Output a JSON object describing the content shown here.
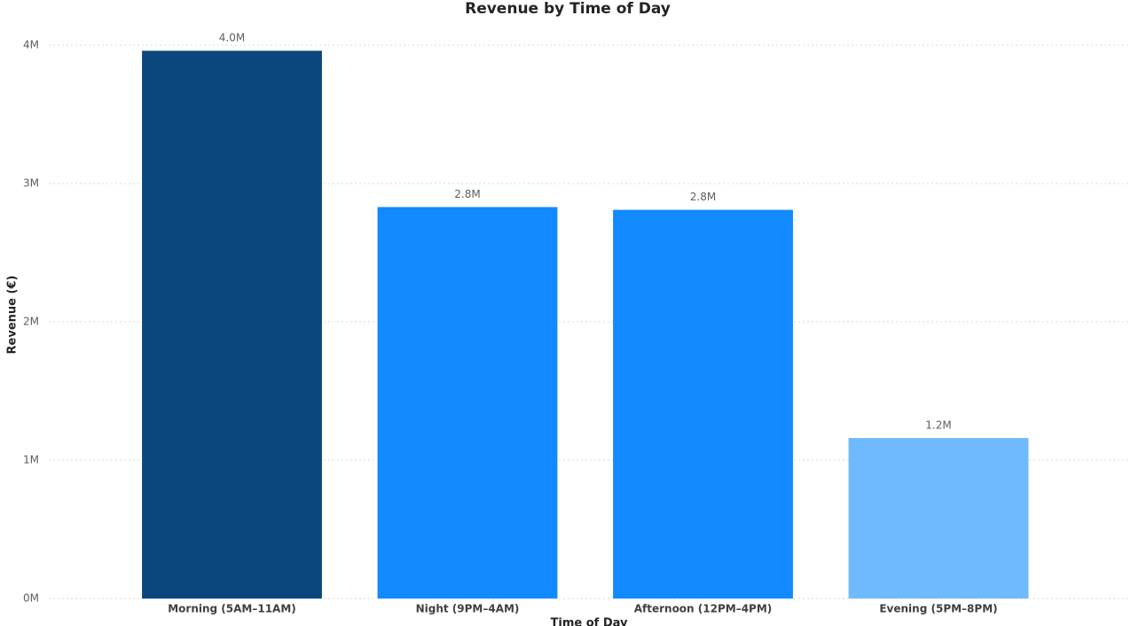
{
  "chart_data": {
    "type": "bar",
    "title": "Revenue by Time of Day",
    "x_label": "Time of Day",
    "y_label": "Revenue (€)",
    "categories": [
      "Morning (5AM–11AM)",
      "Night (9PM–4AM)",
      "Afternoon (12PM–4PM)",
      "Evening (5PM–8PM)"
    ],
    "values": [
      3960000,
      2830000,
      2810000,
      1160000
    ],
    "value_labels": [
      "4.0M",
      "2.8M",
      "2.8M",
      "1.2M"
    ],
    "colors": [
      "#0b477c",
      "#128afe",
      "#128afe",
      "#6fbafe"
    ],
    "ylim": [
      0,
      4000000
    ],
    "yticks": [
      {
        "value": 0,
        "label": "0M"
      },
      {
        "value": 1000000,
        "label": "1M"
      },
      {
        "value": 2000000,
        "label": "2M"
      },
      {
        "value": 3000000,
        "label": "3M"
      },
      {
        "value": 4000000,
        "label": "4M"
      }
    ],
    "grid": true
  }
}
